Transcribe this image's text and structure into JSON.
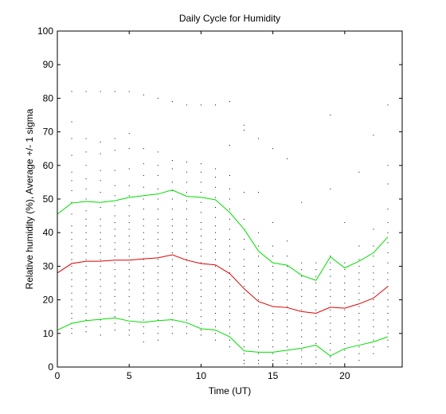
{
  "chart_data": {
    "type": "line",
    "title": "Daily Cycle for Humidity",
    "xlabel": "Time (UT)",
    "ylabel": "Relative humidity (%), Average +/- 1 sigma",
    "xlim": [
      0,
      24
    ],
    "ylim": [
      0,
      100
    ],
    "x_ticks": [
      0,
      5,
      10,
      15,
      20
    ],
    "y_ticks": [
      0,
      10,
      20,
      30,
      40,
      50,
      60,
      70,
      80,
      90,
      100
    ],
    "grid": false,
    "x": [
      0,
      1,
      2,
      3,
      4,
      5,
      6,
      7,
      8,
      9,
      10,
      11,
      12,
      13,
      14,
      15,
      16,
      17,
      18,
      19,
      20,
      21,
      22,
      23
    ],
    "series": [
      {
        "color": "#00dd00",
        "values": [
          45.5,
          48.8,
          49.3,
          49.0,
          49.5,
          50.5,
          51.0,
          51.5,
          52.7,
          50.8,
          50.5,
          49.8,
          46.0,
          41.0,
          34.5,
          31.0,
          30.3,
          27.3,
          25.8,
          32.8,
          29.5,
          31.5,
          34.0,
          38.7
        ]
      },
      {
        "color": "#dd0000",
        "values": [
          28.0,
          30.8,
          31.5,
          31.5,
          31.8,
          31.8,
          32.2,
          32.5,
          33.4,
          31.8,
          30.8,
          30.4,
          27.8,
          23.3,
          19.5,
          18.0,
          17.7,
          16.5,
          16.0,
          17.8,
          17.5,
          18.8,
          20.5,
          24.0
        ]
      },
      {
        "color": "#00dd00",
        "values": [
          11.0,
          13.0,
          13.8,
          14.2,
          14.6,
          13.7,
          13.3,
          13.8,
          14.1,
          13.2,
          11.4,
          11.0,
          9.0,
          4.8,
          4.4,
          4.4,
          5.0,
          5.6,
          6.5,
          3.3,
          5.5,
          6.5,
          7.5,
          9.0
        ]
      }
    ],
    "scatter_color": "#000000",
    "scatter_columns": [
      {
        "x": 0,
        "y": [
          83.0,
          69.5,
          64.5,
          58.0,
          54.5,
          50.5,
          48.0,
          45.5,
          43.5,
          41.0,
          39.0,
          37.0,
          35.0,
          33.0,
          31.5,
          30.0,
          28.5,
          27.0,
          25.5,
          24.0,
          22.5,
          21.0,
          19.5,
          18.0,
          16.5,
          15.0,
          13.5,
          12.0,
          10.5,
          9.5
        ]
      },
      {
        "x": 1,
        "y": [
          82.0,
          73.0,
          68.0,
          63.0,
          58.0,
          55.5,
          52.5,
          49.0,
          45.5,
          42.0,
          40.0,
          38.0,
          36.0,
          34.0,
          32.0,
          30.0,
          28.0,
          26.0,
          24.0,
          22.0,
          20.0,
          18.0,
          16.0,
          14.5,
          13.0,
          11.5,
          10.0
        ]
      },
      {
        "x": 2,
        "y": [
          82.0,
          68.0,
          64.0,
          60.0,
          56.0,
          53.0,
          50.0,
          46.5,
          44.0,
          42.0,
          40.0,
          38.0,
          36.0,
          34.0,
          32.0,
          30.0,
          28.0,
          26.0,
          24.0,
          22.0,
          20.0,
          18.0,
          16.0,
          14.0,
          12.0,
          10.5
        ]
      },
      {
        "x": 3,
        "y": [
          82.0,
          67.0,
          63.5,
          58.5,
          55.5,
          52.0,
          47.5,
          44.0,
          42.0,
          40.0,
          38.0,
          36.0,
          34.0,
          32.0,
          30.0,
          28.0,
          26.0,
          24.0,
          22.0,
          20.0,
          18.0,
          16.0,
          14.0,
          12.0,
          9.5
        ]
      },
      {
        "x": 4,
        "y": [
          82.0,
          68.0,
          64.5,
          58.5,
          54.0,
          51.0,
          48.0,
          45.0,
          43.0,
          41.0,
          39.0,
          37.0,
          35.0,
          33.0,
          31.0,
          29.0,
          27.0,
          25.0,
          23.0,
          21.0,
          19.0,
          17.0,
          15.0,
          13.0,
          11.0
        ]
      },
      {
        "x": 5,
        "y": [
          82.0,
          69.5,
          65.0,
          59.0,
          54.0,
          51.0,
          48.0,
          45.0,
          43.0,
          41.0,
          39.0,
          37.0,
          35.0,
          33.0,
          31.0,
          29.0,
          27.0,
          25.0,
          23.0,
          21.0,
          19.0,
          17.0,
          15.0,
          13.0,
          11.0,
          9.5
        ]
      },
      {
        "x": 6,
        "y": [
          81.0,
          65.0,
          60.5,
          57.0,
          53.5,
          50.0,
          47.0,
          44.0,
          42.0,
          40.0,
          38.0,
          36.0,
          34.0,
          32.0,
          30.0,
          28.0,
          26.0,
          24.0,
          22.0,
          20.0,
          18.0,
          16.0,
          14.0,
          12.0,
          10.0,
          7.5
        ]
      },
      {
        "x": 7,
        "y": [
          80.0,
          64.0,
          60.0,
          57.0,
          53.0,
          50.0,
          47.0,
          44.0,
          42.0,
          40.0,
          38.0,
          36.0,
          34.0,
          32.0,
          30.0,
          28.0,
          26.0,
          24.0,
          22.0,
          20.0,
          18.0,
          16.0,
          14.0,
          12.0,
          10.0,
          8.0
        ]
      },
      {
        "x": 8,
        "y": [
          79.0,
          61.5,
          59.0,
          55.0,
          52.5,
          50.0,
          47.0,
          44.0,
          42.0,
          40.0,
          38.0,
          36.0,
          34.0,
          32.0,
          30.0,
          28.0,
          26.0,
          24.0,
          22.0,
          20.0,
          18.0,
          16.0,
          14.0,
          12.0,
          10.0
        ]
      },
      {
        "x": 9,
        "y": [
          78.0,
          61.0,
          58.0,
          55.0,
          52.0,
          49.5,
          47.0,
          44.0,
          42.0,
          40.0,
          38.0,
          36.0,
          34.0,
          32.0,
          30.0,
          28.0,
          26.0,
          24.0,
          22.0,
          20.0,
          18.0,
          16.0,
          14.0,
          12.0,
          10.0
        ]
      },
      {
        "x": 10,
        "y": [
          78.0,
          60.5,
          58.0,
          55.0,
          52.0,
          49.0,
          46.0,
          43.0,
          41.0,
          39.0,
          37.0,
          35.0,
          33.0,
          31.0,
          29.0,
          27.0,
          25.0,
          23.0,
          21.0,
          19.0,
          17.0,
          15.0,
          13.0,
          11.0,
          9.5
        ]
      },
      {
        "x": 11,
        "y": [
          78.0,
          59.0,
          56.5,
          53.5,
          50.5,
          47.5,
          44.5,
          42.0,
          40.0,
          38.0,
          36.0,
          34.0,
          32.0,
          30.0,
          28.0,
          26.0,
          24.0,
          22.0,
          20.0,
          18.0,
          16.0,
          14.0,
          12.0,
          10.0,
          8.0
        ]
      },
      {
        "x": 12,
        "y": [
          79.0,
          66.0,
          57.0,
          53.0,
          50.0,
          47.0,
          44.0,
          41.0,
          38.0,
          36.0,
          34.0,
          32.0,
          30.0,
          28.0,
          26.0,
          24.0,
          22.0,
          20.0,
          18.0,
          16.0,
          14.0,
          12.0,
          10.0,
          8.0,
          6.0
        ]
      },
      {
        "x": 13,
        "y": [
          72.0,
          70.5,
          52.0,
          44.0,
          41.0,
          38.0,
          35.0,
          32.0,
          30.0,
          28.0,
          26.0,
          24.0,
          22.0,
          20.0,
          18.0,
          16.0,
          14.0,
          12.0,
          10.0,
          8.0,
          6.0,
          4.0,
          2.0,
          1.0
        ]
      },
      {
        "x": 14,
        "y": [
          68.0,
          52.0,
          40.0,
          36.0,
          33.0,
          30.0,
          28.0,
          26.0,
          24.0,
          22.0,
          20.0,
          18.0,
          16.0,
          14.0,
          12.0,
          10.0,
          8.0,
          6.0,
          4.0,
          2.0,
          1.0
        ]
      },
      {
        "x": 15,
        "y": [
          65.0,
          43.0,
          36.0,
          33.0,
          30.0,
          28.0,
          26.0,
          24.0,
          22.0,
          20.0,
          18.0,
          16.0,
          14.0,
          12.0,
          10.0,
          8.0,
          6.0,
          4.0,
          2.0,
          1.0
        ]
      },
      {
        "x": 16,
        "y": [
          62.0,
          37.5,
          33.0,
          30.0,
          28.0,
          26.0,
          24.0,
          22.0,
          20.0,
          18.0,
          16.0,
          14.0,
          12.0,
          10.0,
          8.0,
          6.0,
          4.0,
          2.0,
          1.0
        ]
      },
      {
        "x": 17,
        "y": [
          49.0,
          31.0,
          29.0,
          27.0,
          25.0,
          23.0,
          21.0,
          19.0,
          17.0,
          15.0,
          13.0,
          11.0,
          9.0,
          7.0,
          5.0,
          3.0,
          1.0
        ]
      },
      {
        "x": 18,
        "y": [
          31.0,
          29.0,
          27.0,
          25.0,
          23.0,
          21.0,
          19.0,
          17.0,
          15.0,
          13.0,
          11.0,
          9.0,
          7.0,
          5.0,
          3.0,
          1.0
        ]
      },
      {
        "x": 19,
        "y": [
          75.0,
          53.0,
          33.0,
          31.0,
          29.0,
          27.0,
          25.0,
          23.0,
          21.0,
          19.0,
          17.0,
          15.0,
          13.0,
          11.0,
          9.0,
          7.0,
          5.0,
          3.0,
          1.0
        ]
      },
      {
        "x": 20,
        "y": [
          43.0,
          31.0,
          29.0,
          27.0,
          25.0,
          23.0,
          21.0,
          19.0,
          17.0,
          15.0,
          13.0,
          11.0,
          9.0,
          7.0,
          5.0,
          3.0,
          1.0
        ]
      },
      {
        "x": 21,
        "y": [
          58.0,
          36.0,
          32.0,
          30.0,
          28.0,
          26.0,
          24.0,
          22.0,
          20.0,
          18.0,
          16.0,
          14.0,
          12.0,
          10.0,
          8.0,
          6.0,
          4.0,
          2.0
        ]
      },
      {
        "x": 22,
        "y": [
          69.0,
          41.0,
          36.0,
          33.0,
          30.0,
          28.0,
          26.0,
          24.0,
          22.0,
          20.0,
          18.0,
          16.0,
          14.0,
          12.0,
          10.0,
          8.0,
          6.0,
          4.0
        ]
      },
      {
        "x": 23,
        "y": [
          78.0,
          60.0,
          54.5,
          47.0,
          43.0,
          40.0,
          37.0,
          34.0,
          31.0,
          28.0,
          26.0,
          24.0,
          22.0,
          20.0,
          18.0,
          16.0,
          14.0,
          12.0,
          10.0,
          8.0,
          6.0
        ]
      }
    ]
  }
}
